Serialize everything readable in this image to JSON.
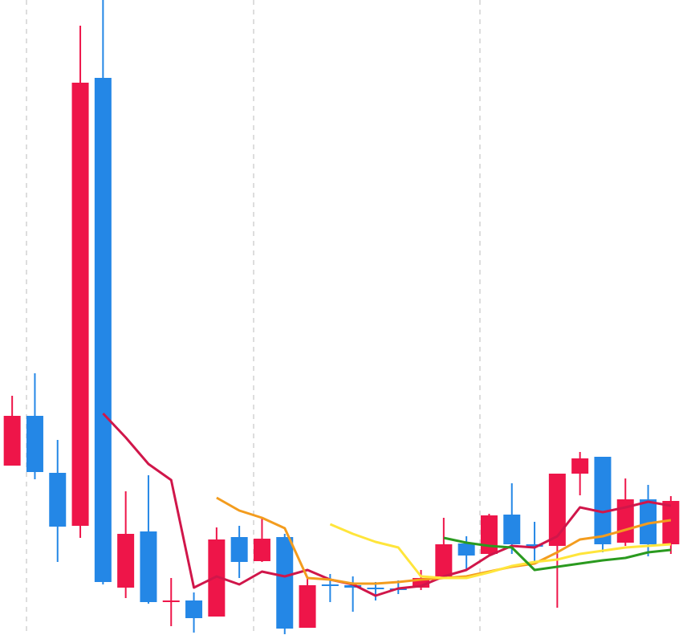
{
  "chart_data": {
    "type": "candlestick",
    "categories": [
      null,
      null,
      null,
      null,
      null,
      null,
      null,
      null,
      null,
      null,
      null,
      null,
      null,
      null,
      null,
      null,
      null,
      null,
      null,
      null,
      null,
      null,
      null,
      null,
      null,
      null,
      null,
      null,
      null,
      null
    ],
    "open": [
      211,
      273,
      202,
      136,
      694,
      59,
      129,
      43,
      43,
      23,
      122,
      92,
      122,
      9,
      63,
      62,
      59,
      58,
      59,
      73,
      114,
      101,
      150,
      113,
      111,
      201,
      222,
      115,
      169,
      113
    ],
    "high": [
      298,
      326,
      243,
      759,
      791,
      179,
      199,
      71,
      53,
      134,
      136,
      146,
      126,
      71,
      76,
      73,
      66,
      68,
      81,
      146,
      123,
      151,
      189,
      141,
      201,
      228,
      222,
      195,
      187,
      173
    ],
    "low": [
      211,
      194,
      91,
      121,
      63,
      46,
      39,
      11,
      3,
      23,
      71,
      91,
      1,
      9,
      41,
      29,
      43,
      51,
      56,
      71,
      81,
      99,
      101,
      91,
      34,
      174,
      103,
      111,
      98,
      101
    ],
    "close": [
      273,
      203,
      135,
      688,
      66,
      126,
      41,
      43,
      21,
      119,
      91,
      120,
      8,
      62,
      62,
      59,
      58,
      56,
      71,
      113,
      99,
      149,
      113,
      110,
      201,
      220,
      113,
      169,
      113,
      167
    ],
    "up_color": "#ee1549",
    "down_color": "#2487e6",
    "series": [
      {
        "color": "#d0164a",
        "values": [
          null,
          null,
          null,
          null,
          276,
          246,
          213,
          193,
          59,
          73,
          63,
          79,
          73,
          81,
          69,
          63,
          49,
          58,
          61,
          73,
          81,
          99,
          111,
          109,
          123,
          159,
          153,
          159,
          166,
          161
        ]
      },
      {
        "color": "#f39c1e",
        "values": [
          null,
          null,
          null,
          null,
          null,
          null,
          null,
          null,
          null,
          171,
          155,
          146,
          133,
          71,
          69,
          64,
          64,
          66,
          69,
          71,
          73,
          79,
          85,
          89,
          103,
          119,
          123,
          131,
          139,
          143
        ]
      },
      {
        "color": "#ffe53b",
        "values": [
          null,
          null,
          null,
          null,
          null,
          null,
          null,
          null,
          null,
          null,
          null,
          null,
          null,
          null,
          138,
          126,
          116,
          109,
          73,
          71,
          71,
          78,
          86,
          91,
          94,
          101,
          105,
          109,
          111,
          113
        ]
      },
      {
        "color": "#2a9a1f",
        "values": [
          null,
          null,
          null,
          null,
          null,
          null,
          null,
          null,
          null,
          null,
          null,
          null,
          null,
          null,
          null,
          null,
          null,
          null,
          null,
          121,
          115,
          111,
          109,
          81,
          85,
          89,
          93,
          96,
          103,
          106
        ]
      }
    ],
    "ylim": [
      0,
      791
    ]
  }
}
